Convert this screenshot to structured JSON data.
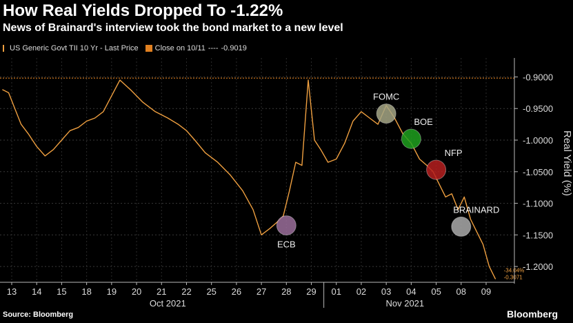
{
  "title": "How Real Yields Dropped To -1.22%",
  "subtitle": "News of Brainard's interview took the bond market to a new level",
  "legend": {
    "series_label": "US Generic Govt TII 10 Yr - Last Price",
    "close_label": "Close on 10/11",
    "close_dashes": "----",
    "close_value": "-0.9019"
  },
  "footer": {
    "source": "Source: Bloomberg",
    "brand": "Bloomberg"
  },
  "chart_data": {
    "type": "line",
    "ylabel": "Real Yield (%)",
    "ylim": [
      -1.225,
      -0.87
    ],
    "yticks": [
      -0.9,
      -0.95,
      -1.0,
      -1.05,
      -1.1,
      -1.15,
      -1.2
    ],
    "ytick_labels": [
      "-0.9000",
      "-0.9500",
      "-1.0000",
      "-1.0500",
      "-1.1000",
      "-1.1500",
      "-1.2000"
    ],
    "day_labels": [
      "13",
      "14",
      "15",
      "18",
      "19",
      "20",
      "21",
      "22",
      "25",
      "26",
      "27",
      "28",
      "29",
      "01",
      "02",
      "03",
      "04",
      "05",
      "08",
      "09"
    ],
    "month_labels": [
      "Oct 2021",
      "Nov 2021"
    ],
    "reference_line": {
      "label": "Close on 10/11",
      "value": -0.9019
    },
    "series": [
      {
        "name": "US Generic Govt TII 10 Yr - Last Price",
        "color": "#f0a040",
        "points": [
          [
            "13",
            -0.92
          ],
          [
            "13",
            -0.925
          ],
          [
            "13",
            -0.95
          ],
          [
            "13",
            -0.975
          ],
          [
            "14",
            -0.99
          ],
          [
            "14",
            -1.01
          ],
          [
            "14",
            -1.025
          ],
          [
            "15",
            -1.015
          ],
          [
            "15",
            -1.0
          ],
          [
            "15",
            -0.985
          ],
          [
            "18",
            -0.98
          ],
          [
            "18",
            -0.97
          ],
          [
            "18",
            -0.965
          ],
          [
            "19",
            -0.955
          ],
          [
            "19",
            -0.93
          ],
          [
            "19",
            -0.905
          ],
          [
            "20",
            -0.92
          ],
          [
            "20",
            -0.94
          ],
          [
            "21",
            -0.955
          ],
          [
            "21",
            -0.965
          ],
          [
            "22",
            -0.975
          ],
          [
            "22",
            -0.985
          ],
          [
            "22",
            -1.0
          ],
          [
            "25",
            -1.02
          ],
          [
            "25",
            -1.035
          ],
          [
            "26",
            -1.055
          ],
          [
            "26",
            -1.08
          ],
          [
            "27",
            -1.11
          ],
          [
            "27",
            -1.15
          ],
          [
            "27",
            -1.14
          ],
          [
            "28",
            -1.13
          ],
          [
            "28",
            -1.12
          ],
          [
            "28",
            -1.08
          ],
          [
            "28",
            -1.035
          ],
          [
            "29",
            -1.04
          ],
          [
            "29",
            -0.905
          ],
          [
            "29",
            -1.0
          ],
          [
            "29",
            -1.015
          ],
          [
            "01",
            -1.035
          ],
          [
            "01",
            -1.03
          ],
          [
            "01",
            -1.005
          ],
          [
            "02",
            -0.97
          ],
          [
            "02",
            -0.955
          ],
          [
            "02",
            -0.965
          ],
          [
            "03",
            -0.975
          ],
          [
            "03",
            -0.945
          ],
          [
            "03",
            -0.965
          ],
          [
            "04",
            -0.99
          ],
          [
            "04",
            -1.005
          ],
          [
            "04",
            -1.03
          ],
          [
            "05",
            -1.04
          ],
          [
            "05",
            -1.05
          ],
          [
            "05",
            -1.07
          ],
          [
            "05",
            -1.09
          ],
          [
            "08",
            -1.085
          ],
          [
            "08",
            -1.11
          ],
          [
            "08",
            -1.09
          ],
          [
            "08",
            -1.125
          ],
          [
            "09",
            -1.145
          ],
          [
            "09",
            -1.165
          ],
          [
            "09",
            -1.2
          ],
          [
            "09",
            -1.22
          ]
        ]
      }
    ],
    "event_markers": [
      {
        "label": "ECB",
        "date": "28",
        "value": -1.135,
        "color": "#9b6f9b"
      },
      {
        "label": "FOMC",
        "date": "03",
        "value": -0.958,
        "color": "#a5a685"
      },
      {
        "label": "BOE",
        "date": "04",
        "value": -0.998,
        "color": "#1fa01f"
      },
      {
        "label": "NFP",
        "date": "05",
        "value": -1.047,
        "color": "#b51e1e"
      },
      {
        "label": "BRAINARD",
        "date": "08",
        "value": -1.137,
        "color": "#aaaaaa"
      }
    ],
    "end_labels": [
      "-34.04%",
      "-0.3071"
    ]
  }
}
